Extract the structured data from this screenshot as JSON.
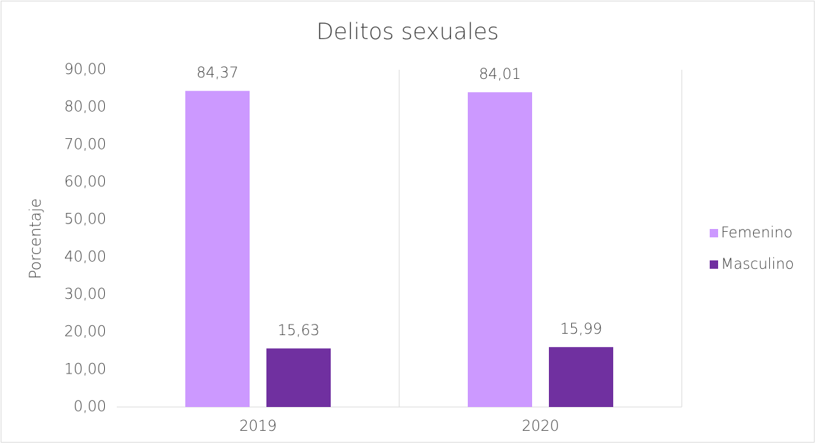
{
  "chart_data": {
    "type": "bar",
    "title": "Delitos sexuales",
    "y_label": "Porcentaje",
    "categories": [
      "2019",
      "2020"
    ],
    "series": [
      {
        "name": "Femenino",
        "color": "#cc99ff",
        "values": [
          84.37,
          84.01
        ],
        "value_labels": [
          "84,37",
          "84,01"
        ]
      },
      {
        "name": "Masculino",
        "color": "#7030a0",
        "values": [
          15.63,
          15.99
        ],
        "value_labels": [
          "15,63",
          "15,99"
        ]
      }
    ],
    "ylim": [
      0,
      90
    ],
    "yticks": [
      {
        "value": 0,
        "label": "0,00"
      },
      {
        "value": 10,
        "label": "10,00"
      },
      {
        "value": 20,
        "label": "20,00"
      },
      {
        "value": 30,
        "label": "30,00"
      },
      {
        "value": 40,
        "label": "40,00"
      },
      {
        "value": 50,
        "label": "50,00"
      },
      {
        "value": 60,
        "label": "60,00"
      },
      {
        "value": 70,
        "label": "70,00"
      },
      {
        "value": 80,
        "label": "80,00"
      },
      {
        "value": 90,
        "label": "90,00"
      }
    ],
    "legend": "right",
    "grid": false
  }
}
